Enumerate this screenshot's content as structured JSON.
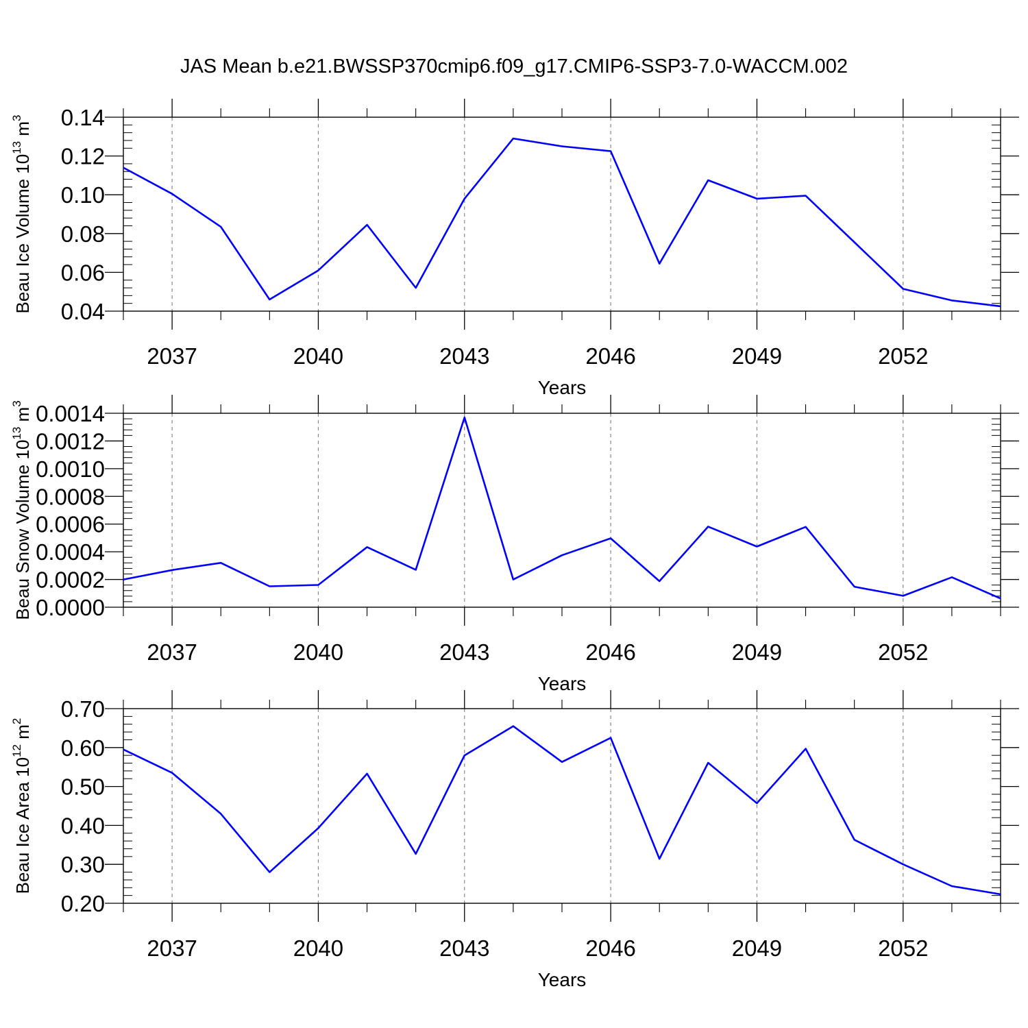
{
  "figure": {
    "title": "JAS Mean b.e21.BWSSP370cmip6.f09_g17.CMIP6-SSP3-7.0-WACCM.002"
  },
  "chart_data": [
    {
      "type": "line",
      "title": "",
      "xlabel": "Years",
      "ylabel": "Beau Ice Volume 10",
      "ylabel_exponent": "13",
      "ylabel_unit": "m",
      "ylabel_unit_exponent": "3",
      "x": [
        2036,
        2037,
        2038,
        2039,
        2040,
        2041,
        2042,
        2043,
        2044,
        2045,
        2046,
        2047,
        2048,
        2049,
        2050,
        2051,
        2052,
        2053,
        2054
      ],
      "xlim": [
        2036,
        2054
      ],
      "xticks": [
        "2037",
        "2040",
        "2043",
        "2046",
        "2049",
        "2052"
      ],
      "ylim": [
        0.04,
        0.14
      ],
      "yticks": [
        "0.04",
        "0.06",
        "0.08",
        "0.10",
        "0.12",
        "0.14"
      ],
      "series": [
        {
          "values": [
            0.114,
            0.1005,
            0.0835,
            0.046,
            0.061,
            0.0845,
            0.052,
            0.098,
            0.129,
            0.125,
            0.1225,
            0.0645,
            0.1075,
            0.098,
            0.0995,
            0.0755,
            0.0515,
            0.0455,
            0.0425
          ],
          "color": "#0000ff"
        }
      ],
      "grid": "vertical dashed at labeled years"
    },
    {
      "type": "line",
      "title": "",
      "xlabel": "Years",
      "ylabel": "Beau Snow Volume 10",
      "ylabel_exponent": "13",
      "ylabel_unit": "m",
      "ylabel_unit_exponent": "3",
      "x": [
        2036,
        2037,
        2038,
        2039,
        2040,
        2041,
        2042,
        2043,
        2044,
        2045,
        2046,
        2047,
        2048,
        2049,
        2050,
        2051,
        2052,
        2053,
        2054
      ],
      "xlim": [
        2036,
        2054
      ],
      "xticks": [
        "2037",
        "2040",
        "2043",
        "2046",
        "2049",
        "2052"
      ],
      "ylim": [
        0.0,
        0.0014
      ],
      "yticks": [
        "0.0000",
        "0.0002",
        "0.0004",
        "0.0006",
        "0.0008",
        "0.0010",
        "0.0012",
        "0.0014"
      ],
      "series": [
        {
          "values": [
            0.0002,
            0.000268,
            0.00032,
            0.000151,
            0.000161,
            0.000434,
            0.00027,
            0.00137,
            0.0002,
            0.000375,
            0.000497,
            0.000188,
            0.000582,
            0.000438,
            0.00058,
            0.000148,
            8.2e-05,
            0.000216,
            6.3e-05
          ],
          "color": "#0000ff"
        }
      ],
      "grid": "vertical dashed at labeled years"
    },
    {
      "type": "line",
      "title": "",
      "xlabel": "Years",
      "ylabel": "Beau Ice Area 10",
      "ylabel_exponent": "12",
      "ylabel_unit": "m",
      "ylabel_unit_exponent": "2",
      "x": [
        2036,
        2037,
        2038,
        2039,
        2040,
        2041,
        2042,
        2043,
        2044,
        2045,
        2046,
        2047,
        2048,
        2049,
        2050,
        2051,
        2052,
        2053,
        2054
      ],
      "xlim": [
        2036,
        2054
      ],
      "xticks": [
        "2037",
        "2040",
        "2043",
        "2046",
        "2049",
        "2052"
      ],
      "ylim": [
        0.2,
        0.7
      ],
      "yticks": [
        "0.20",
        "0.30",
        "0.40",
        "0.50",
        "0.60",
        "0.70"
      ],
      "series": [
        {
          "values": [
            0.595,
            0.535,
            0.43,
            0.28,
            0.393,
            0.533,
            0.327,
            0.58,
            0.655,
            0.563,
            0.625,
            0.314,
            0.561,
            0.457,
            0.597,
            0.363,
            0.3,
            0.244,
            0.223
          ],
          "color": "#0000ff"
        }
      ],
      "grid": "vertical dashed at labeled years"
    }
  ]
}
